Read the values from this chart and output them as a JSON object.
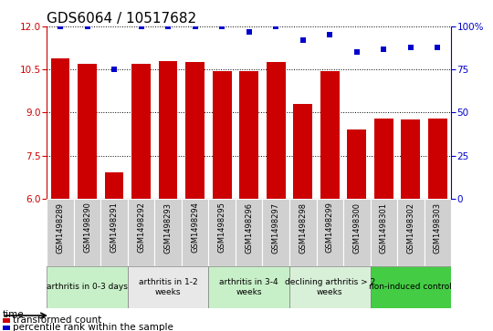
{
  "title": "GDS6064 / 10517682",
  "samples": [
    "GSM1498289",
    "GSM1498290",
    "GSM1498291",
    "GSM1498292",
    "GSM1498293",
    "GSM1498294",
    "GSM1498295",
    "GSM1498296",
    "GSM1498297",
    "GSM1498298",
    "GSM1498299",
    "GSM1498300",
    "GSM1498301",
    "GSM1498302",
    "GSM1498303"
  ],
  "bar_values": [
    10.9,
    10.7,
    6.9,
    10.7,
    10.8,
    10.75,
    10.45,
    10.43,
    10.75,
    9.3,
    10.45,
    8.4,
    8.8,
    8.75,
    8.8
  ],
  "percentile_values": [
    100,
    100,
    75,
    100,
    100,
    100,
    100,
    97,
    100,
    92,
    95,
    85,
    87,
    88,
    88
  ],
  "bar_color": "#cc0000",
  "percentile_color": "#0000cc",
  "ylim_left": [
    6,
    12
  ],
  "ylim_right": [
    0,
    100
  ],
  "yticks_left": [
    6,
    7.5,
    9,
    10.5,
    12
  ],
  "yticks_right": [
    0,
    25,
    50,
    75,
    100
  ],
  "groups": [
    {
      "label": "arthritis in 0-3 days",
      "start": 0,
      "end": 3,
      "color": "#c8f0c8"
    },
    {
      "label": "arthritis in 1-2\nweeks",
      "start": 3,
      "end": 6,
      "color": "#e8e8e8"
    },
    {
      "label": "arthritis in 3-4\nweeks",
      "start": 6,
      "end": 9,
      "color": "#c8f0c8"
    },
    {
      "label": "declining arthritis > 2\nweeks",
      "start": 9,
      "end": 12,
      "color": "#d8efd8"
    },
    {
      "label": "non-induced control",
      "start": 12,
      "end": 15,
      "color": "#44cc44"
    }
  ],
  "legend_red": "transformed count",
  "legend_blue": "percentile rank within the sample",
  "time_label": "time",
  "grid_color": "#000000",
  "title_fontsize": 11,
  "tick_fontsize": 7.5,
  "sample_fontsize": 6.0,
  "group_fontsize": 6.5,
  "legend_fontsize": 7.5
}
